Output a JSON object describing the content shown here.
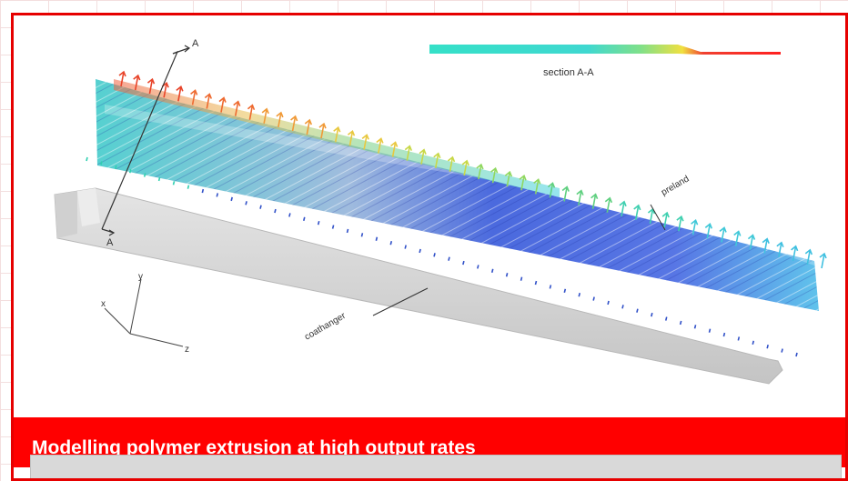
{
  "figure": {
    "section_label": "section A-A",
    "label_preland": "preland",
    "label_coathanger": "coathanger",
    "label_a_top": "A",
    "label_a_bottom": "A",
    "axis_x": "x",
    "axis_y": "y",
    "axis_z": "z"
  },
  "caption": {
    "title": "Modelling polymer extrusion at high output rates"
  },
  "colors": {
    "frame_red": "#e60000",
    "caption_red": "#ff0000",
    "streamline_blue": "#2340d8",
    "streamline_cyan": "#39c6e0",
    "arrow_red": "#e8442a"
  }
}
